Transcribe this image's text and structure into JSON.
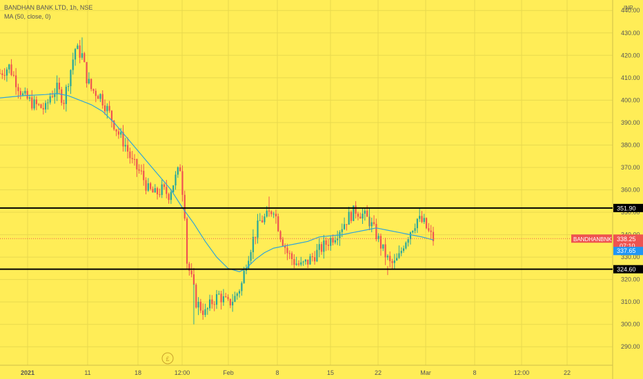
{
  "header": {
    "symbol_title": "BANDHAN BANK LTD, 1h, NSE",
    "indicator": "MA (50, close, 0)",
    "currency": "INR"
  },
  "colors": {
    "background": "#FFED57",
    "up": "#26a69a",
    "down": "#ef5350",
    "ma_line": "#2fa4d9",
    "level_line": "#000000",
    "axis_text": "#555555",
    "price_tag": "#ef5350",
    "ma_tag": "#2196f3"
  },
  "chart_data": {
    "type": "candlestick",
    "title": "BANDHAN BANK LTD, 1h, NSE",
    "ylabel": "INR",
    "ylim": [
      285,
      445
    ],
    "y_ticks": [
      290,
      300,
      310,
      320,
      330,
      340,
      350,
      360,
      370,
      380,
      390,
      400,
      410,
      420,
      430,
      440
    ],
    "x_ticks": [
      "2021",
      "11",
      "18",
      "12:00",
      "Feb",
      "8",
      "15",
      "22",
      "Mar",
      "8",
      "12:00",
      "22"
    ],
    "horizontal_levels": [
      351.9,
      324.6
    ],
    "symbol_label": "BANDHANBNK",
    "last_price": 338.25,
    "countdown": "07:10",
    "ma_value": 337.65,
    "event_marker": "£",
    "close_path": [
      [
        0,
        412
      ],
      [
        4,
        415
      ],
      [
        10,
        402
      ],
      [
        15,
        398
      ],
      [
        20,
        396
      ],
      [
        22,
        402
      ],
      [
        25,
        405
      ],
      [
        28,
        400
      ],
      [
        33,
        423
      ],
      [
        36,
        420
      ],
      [
        38,
        410
      ],
      [
        40,
        405
      ],
      [
        44,
        402
      ],
      [
        48,
        394
      ],
      [
        52,
        385
      ],
      [
        55,
        380
      ],
      [
        58,
        372
      ],
      [
        62,
        367
      ],
      [
        65,
        360
      ],
      [
        68,
        358
      ],
      [
        71,
        360
      ],
      [
        74,
        358
      ],
      [
        76,
        363
      ],
      [
        79,
        370
      ],
      [
        81,
        350
      ],
      [
        82,
        328
      ],
      [
        84,
        320
      ],
      [
        86,
        310
      ],
      [
        90,
        305
      ],
      [
        93,
        310
      ],
      [
        96,
        313
      ],
      [
        100,
        309
      ],
      [
        103,
        312
      ],
      [
        106,
        318
      ],
      [
        108,
        328
      ],
      [
        111,
        338
      ],
      [
        114,
        346
      ],
      [
        117,
        348
      ],
      [
        120,
        352
      ],
      [
        123,
        340
      ],
      [
        126,
        332
      ],
      [
        129,
        328
      ],
      [
        132,
        326
      ],
      [
        135,
        328
      ],
      [
        138,
        331
      ],
      [
        141,
        334
      ],
      [
        144,
        337
      ],
      [
        147,
        340
      ],
      [
        150,
        344
      ],
      [
        153,
        348
      ],
      [
        156,
        351
      ],
      [
        159,
        349
      ],
      [
        162,
        346
      ],
      [
        165,
        340
      ],
      [
        168,
        333
      ],
      [
        171,
        327
      ],
      [
        173,
        327
      ],
      [
        175,
        330
      ],
      [
        177,
        336
      ],
      [
        180,
        342
      ],
      [
        183,
        347
      ],
      [
        186,
        345
      ],
      [
        188,
        341
      ],
      [
        190,
        338
      ]
    ],
    "ma_path": [
      [
        0,
        401
      ],
      [
        10,
        402
      ],
      [
        20,
        402.5
      ],
      [
        25,
        403
      ],
      [
        30,
        402
      ],
      [
        35,
        400
      ],
      [
        40,
        398
      ],
      [
        45,
        395
      ],
      [
        50,
        390
      ],
      [
        55,
        384
      ],
      [
        60,
        378
      ],
      [
        65,
        372
      ],
      [
        70,
        366
      ],
      [
        75,
        360
      ],
      [
        80,
        352
      ],
      [
        85,
        345
      ],
      [
        90,
        337
      ],
      [
        95,
        330
      ],
      [
        100,
        325
      ],
      [
        105,
        323.5
      ],
      [
        108,
        325
      ],
      [
        112,
        329
      ],
      [
        116,
        332
      ],
      [
        120,
        334
      ],
      [
        125,
        335
      ],
      [
        130,
        336
      ],
      [
        135,
        337
      ],
      [
        140,
        339
      ],
      [
        145,
        339.5
      ],
      [
        150,
        340
      ],
      [
        155,
        341
      ],
      [
        160,
        342
      ],
      [
        165,
        343
      ],
      [
        170,
        342
      ],
      [
        175,
        341
      ],
      [
        180,
        340
      ],
      [
        185,
        339
      ],
      [
        190,
        337.65
      ]
    ]
  }
}
